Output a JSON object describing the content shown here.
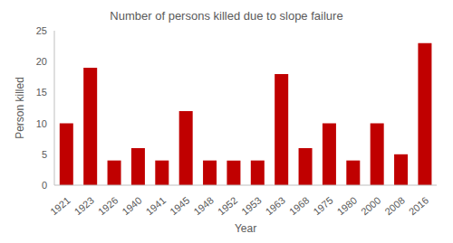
{
  "chart_data": {
    "type": "bar",
    "title": "Number of persons killed due to slope failure",
    "x_label": "Year",
    "y_label": "Person killed",
    "categories": [
      "1921",
      "1923",
      "1926",
      "1940",
      "1941",
      "1945",
      "1948",
      "1952",
      "1953",
      "1963",
      "1968",
      "1975",
      "1980",
      "2000",
      "2008",
      "2016"
    ],
    "values": [
      10,
      19,
      4,
      6,
      4,
      12,
      4,
      4,
      4,
      18,
      6,
      10,
      4,
      10,
      5,
      23
    ],
    "color": "#c00000",
    "ylim": [
      0,
      25
    ],
    "yticks": [
      0,
      5,
      10,
      15,
      20,
      25
    ],
    "grid": false
  }
}
